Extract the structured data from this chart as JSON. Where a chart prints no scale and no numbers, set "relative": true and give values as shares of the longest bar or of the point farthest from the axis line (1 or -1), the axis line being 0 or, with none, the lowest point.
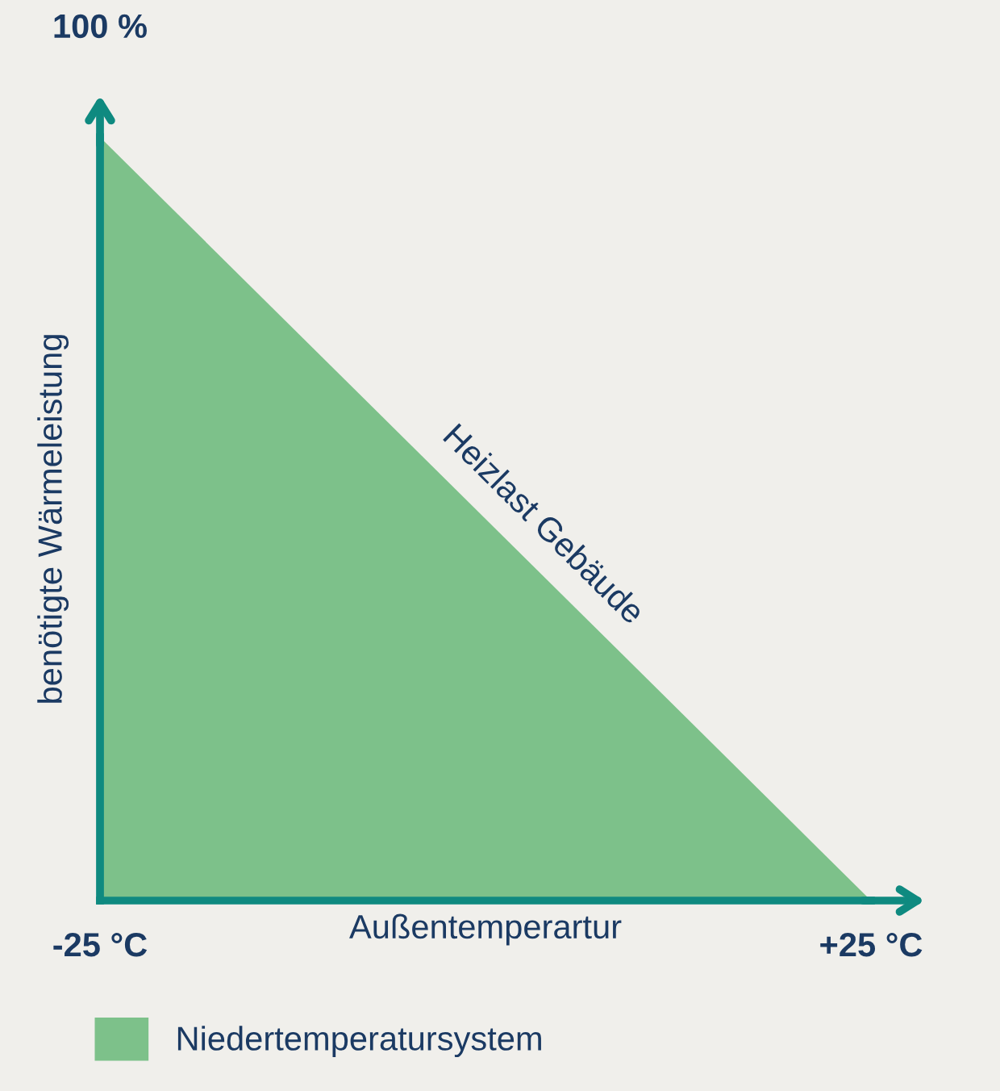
{
  "chart_data": {
    "type": "area",
    "relative": true,
    "x": [
      -25,
      25
    ],
    "series": [
      {
        "name": "Niedertemperatursystem",
        "color": "#7dc18a",
        "values": [
          1,
          0
        ]
      }
    ],
    "xlim": [
      -25,
      25
    ],
    "xticks": [
      {
        "value": -25,
        "label": "-25 °C"
      },
      {
        "value": 25,
        "label": "+25 °C"
      }
    ],
    "xlabel": "Außentemperartur",
    "ylabel": "benötigte Wärmeleistung",
    "annotations": [
      "100 %",
      {
        "text": "Heizlast Gebäude",
        "x": 2.5,
        "y": 0.45
      }
    ],
    "legend": "bottom",
    "tick_labels": "x"
  }
}
